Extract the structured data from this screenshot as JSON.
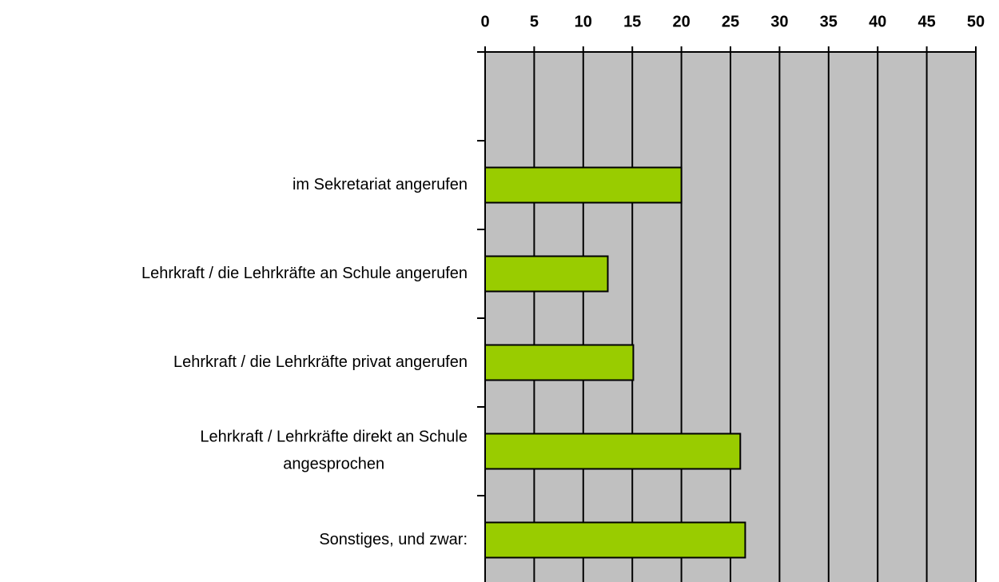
{
  "chart_data": {
    "type": "barh",
    "categories": [
      null,
      "im Sekretariat angerufen",
      "Lehrkraft / die Lehrkräfte an Schule angerufen",
      "Lehrkraft / die Lehrkräfte  privat angerufen",
      "Lehrkraft  / Lehrkräfte direkt an Schule\nangesprochen",
      "Sonstiges, und zwar:"
    ],
    "values": [
      null,
      20,
      12.5,
      15.1,
      26,
      26.5
    ],
    "color": "#99cc00",
    "xlim": [
      0,
      50
    ],
    "xticks": [
      0,
      5,
      10,
      15,
      20,
      25,
      30,
      35,
      40,
      45,
      50
    ],
    "grid": true,
    "background": "#c0c0c0"
  }
}
